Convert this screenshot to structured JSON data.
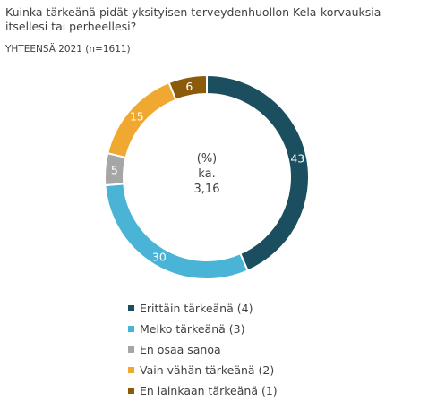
{
  "chart_data": {
    "type": "pie",
    "title": "Kuinka tärkeänä pidät yksityisen terveydenhuollon Kela-korvauksia itsellesi tai perheellesi?",
    "subtitle": "YHTEENSÄ 2021 (n=1611)",
    "center_label": [
      "(%)",
      "ka.",
      "3,16"
    ],
    "categories": [
      "Erittäin tärkeänä (4)",
      "Melko tärkeänä (3)",
      "En osaa sanoa",
      "Vain vähän tärkeänä (2)",
      "En lainkaan tärkeänä (1)"
    ],
    "values": [
      43,
      30,
      5,
      15,
      6
    ],
    "colors": [
      "#1b4f5f",
      "#4ab4d6",
      "#a6a6a6",
      "#f0a830",
      "#8b5a0b"
    ],
    "label_colors": [
      "#ffffff",
      "#ffffff",
      "#ffffff",
      "#ffffff",
      "#ffffff"
    ],
    "legend_position": "bottom"
  }
}
